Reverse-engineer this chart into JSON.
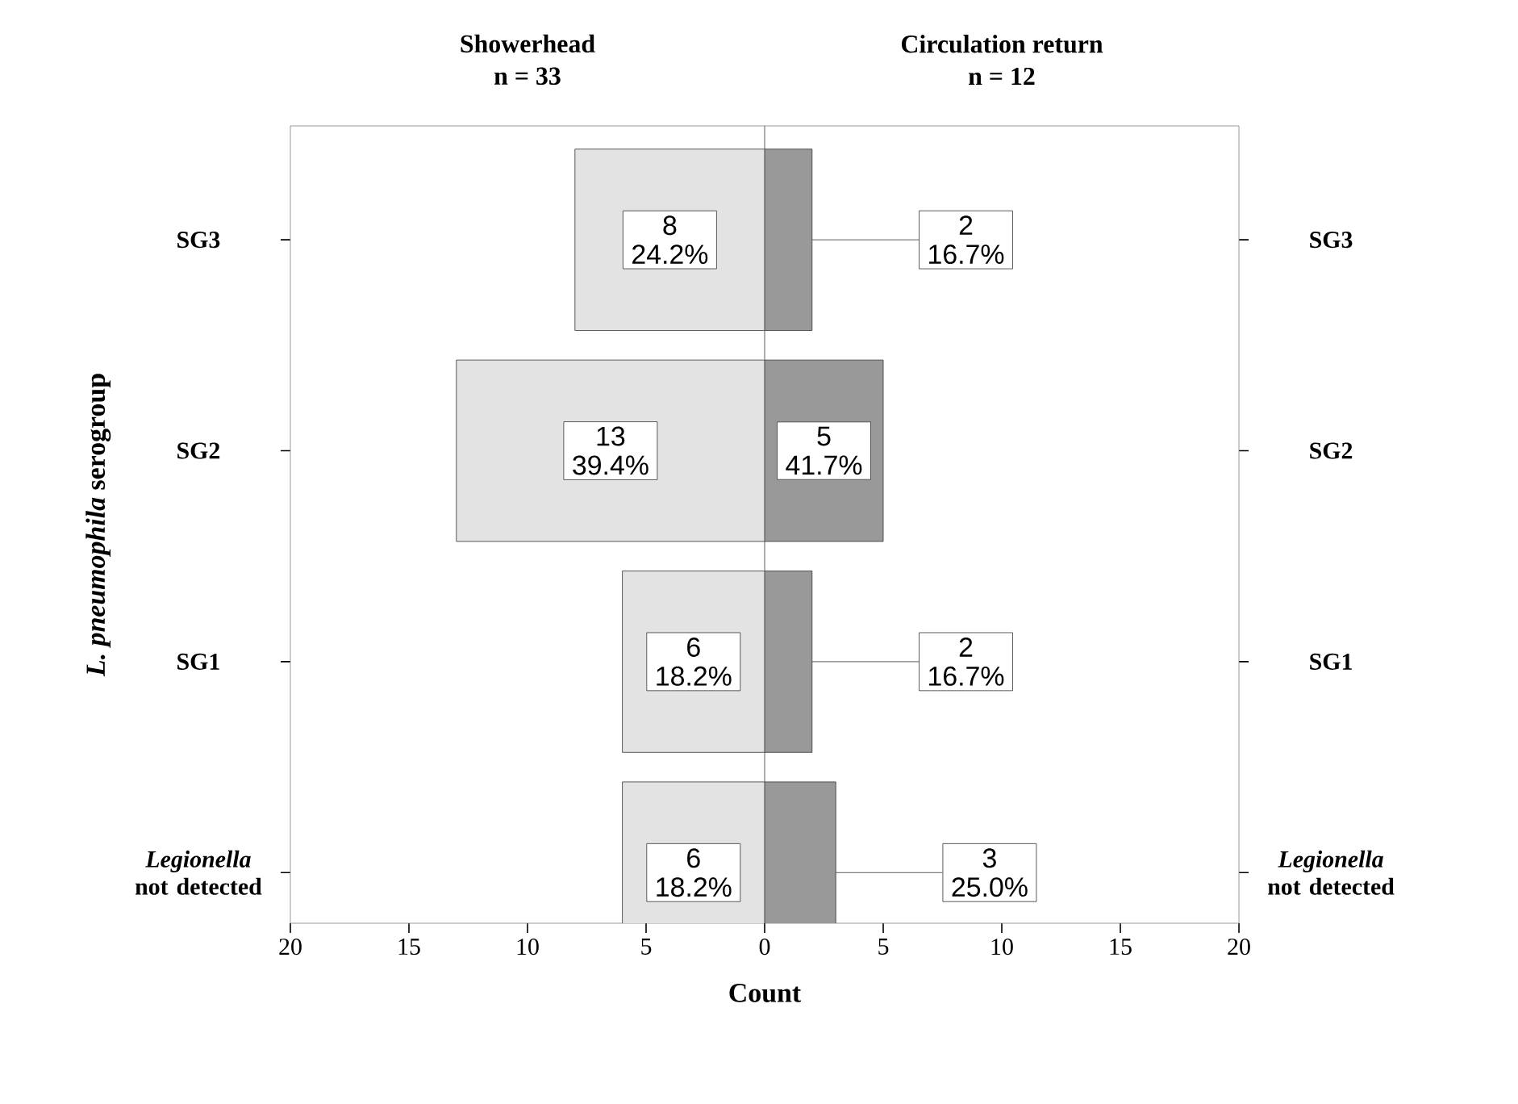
{
  "chart_data": [
    {
      "type": "bar",
      "orientation": "horizontal",
      "title": "Showerhead",
      "subtitle": "n = 33",
      "ylabel": "*L. pneumophila* serogroup",
      "xlabel": "Count",
      "categories": [
        "SG3",
        "SG2",
        "SG1",
        "*Legionella* not detected"
      ],
      "values": [
        8,
        13,
        6,
        6
      ],
      "color": "#e3e3e3",
      "value_labels": [
        "8 24.2%",
        "13 39.4%",
        "6 18.2%",
        "6 18.2%"
      ],
      "xlim": [
        20,
        0
      ],
      "xticks": [
        20,
        15,
        10,
        5
      ]
    },
    {
      "type": "bar",
      "orientation": "horizontal",
      "title": "Circulation return",
      "subtitle": "n = 12",
      "categories": [
        "SG3",
        "SG2",
        "SG1",
        "*Legionella* not detected"
      ],
      "values": [
        2,
        5,
        2,
        3
      ],
      "color": "#999999",
      "value_labels": [
        "2 16.7%",
        "5 41.7%",
        "2 16.7%",
        "3 25.0%"
      ],
      "xlim": [
        0,
        20
      ],
      "xticks": [
        0,
        5,
        10,
        15,
        20
      ]
    }
  ]
}
